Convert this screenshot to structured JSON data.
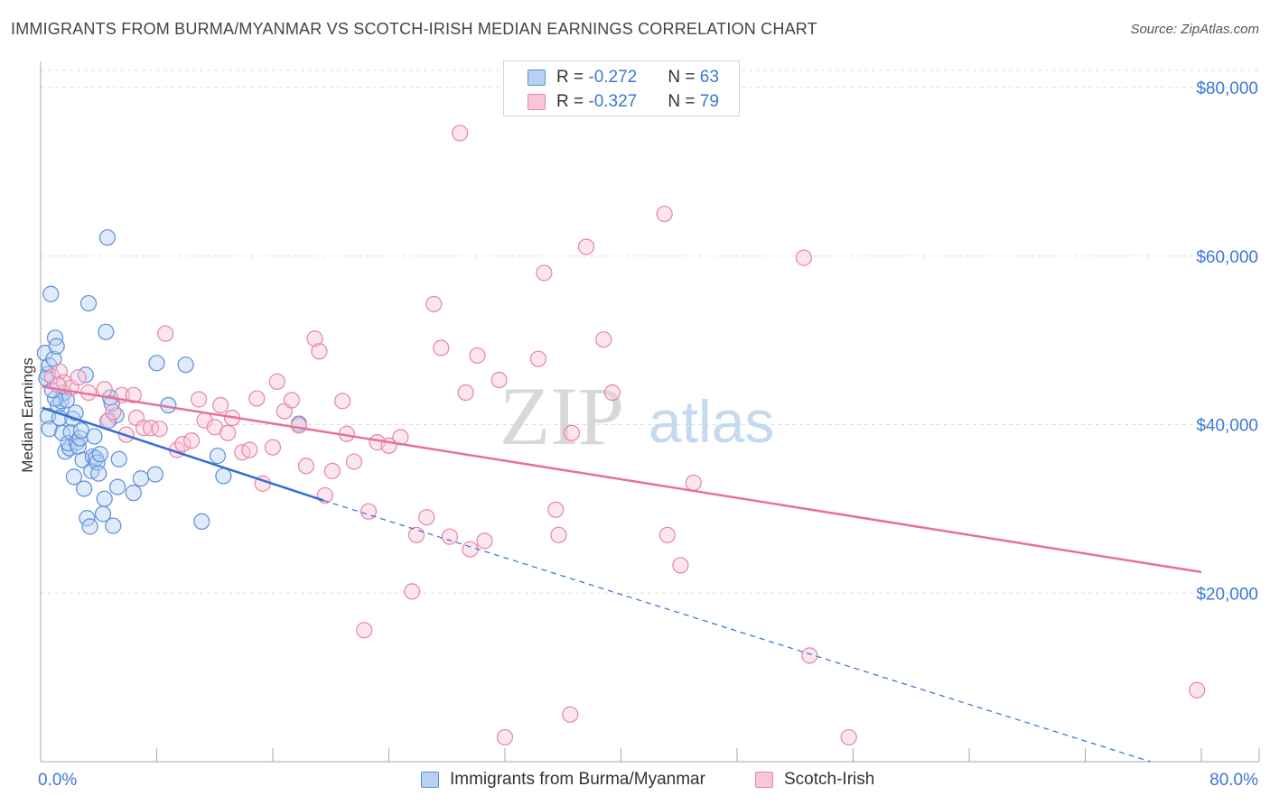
{
  "title": "IMMIGRANTS FROM BURMA/MYANMAR VS SCOTCH-IRISH MEDIAN EARNINGS CORRELATION CHART",
  "source": "Source: ZipAtlas.com",
  "legend": {
    "rows": [
      {
        "r_label": "R = ",
        "r_value": "-0.272",
        "n_label": "N = ",
        "n_value": "63"
      },
      {
        "r_label": "R = ",
        "r_value": "-0.327",
        "n_label": "N = ",
        "n_value": "79"
      }
    ]
  },
  "watermark": {
    "zip": "ZIP",
    "atlas": "atlas"
  },
  "colors": {
    "series1_fill": "#b8d1f3",
    "series1_stroke": "#5b8fd8",
    "series1_line": "#2f6fd6",
    "series2_fill": "#f8c6d6",
    "series2_stroke": "#e585a5",
    "series2_line": "#e8709a",
    "axis_text": "#3b78d8",
    "grid": "#dddddd"
  },
  "chart_data": {
    "type": "scatter",
    "title": "IMMIGRANTS FROM BURMA/MYANMAR VS SCOTCH-IRISH MEDIAN EARNINGS CORRELATION CHART",
    "xlabel": "",
    "ylabel": "Median Earnings",
    "xlim": [
      0,
      80
    ],
    "ylim": [
      0,
      82000
    ],
    "x_tick_labels": [
      "0.0%",
      "80.0%"
    ],
    "y_ticks": [
      20000,
      40000,
      60000,
      80000
    ],
    "y_tick_labels": [
      "$20,000",
      "$40,000",
      "$60,000",
      "$80,000"
    ],
    "grid": true,
    "legend_position": "top-center",
    "series": [
      {
        "name": "Immigrants from Burma/Myanmar",
        "r": -0.272,
        "n": 63,
        "trend": {
          "x": [
            0.1,
            19.5
          ],
          "y": [
            42000,
            31000
          ],
          "dashed_to": {
            "x": 76.5,
            "y": -1000
          }
        },
        "points": [
          [
            0.3,
            48500
          ],
          [
            0.5,
            46000
          ],
          [
            0.6,
            47000
          ],
          [
            0.4,
            45500
          ],
          [
            0.7,
            55500
          ],
          [
            0.9,
            47800
          ],
          [
            1.0,
            50300
          ],
          [
            1.1,
            49300
          ],
          [
            0.5,
            41000
          ],
          [
            0.6,
            39500
          ],
          [
            1.2,
            42300
          ],
          [
            1.4,
            42800
          ],
          [
            1.3,
            40800
          ],
          [
            1.5,
            39000
          ],
          [
            1.6,
            43800
          ],
          [
            1.8,
            42900
          ],
          [
            1.7,
            36800
          ],
          [
            2.0,
            37200
          ],
          [
            1.9,
            37800
          ],
          [
            2.1,
            39100
          ],
          [
            2.3,
            33800
          ],
          [
            2.5,
            37900
          ],
          [
            2.6,
            37400
          ],
          [
            2.7,
            38400
          ],
          [
            2.8,
            39300
          ],
          [
            2.9,
            35800
          ],
          [
            3.0,
            32400
          ],
          [
            3.1,
            45900
          ],
          [
            3.2,
            28900
          ],
          [
            3.4,
            27900
          ],
          [
            3.5,
            34500
          ],
          [
            3.6,
            36200
          ],
          [
            3.8,
            36000
          ],
          [
            3.9,
            35500
          ],
          [
            4.0,
            34200
          ],
          [
            4.1,
            36500
          ],
          [
            4.3,
            29400
          ],
          [
            4.4,
            31200
          ],
          [
            4.5,
            51000
          ],
          [
            4.6,
            62200
          ],
          [
            4.7,
            40500
          ],
          [
            5.0,
            28000
          ],
          [
            5.3,
            32600
          ],
          [
            5.4,
            35900
          ],
          [
            3.3,
            54400
          ],
          [
            5.2,
            41100
          ],
          [
            6.4,
            31900
          ],
          [
            6.9,
            33600
          ],
          [
            7.9,
            34100
          ],
          [
            8.0,
            47300
          ],
          [
            8.8,
            42300
          ],
          [
            10.0,
            47100
          ],
          [
            11.1,
            28500
          ],
          [
            12.2,
            36300
          ],
          [
            12.6,
            33900
          ],
          [
            17.8,
            40100
          ],
          [
            4.9,
            42500
          ],
          [
            2.2,
            40700
          ],
          [
            1.0,
            43100
          ],
          [
            0.8,
            44100
          ],
          [
            2.4,
            41400
          ],
          [
            4.8,
            43200
          ],
          [
            3.7,
            38600
          ]
        ]
      },
      {
        "name": "Scotch-Irish",
        "r": -0.327,
        "n": 79,
        "trend": {
          "x": [
            0.1,
            80.0
          ],
          "y": [
            44500,
            22500
          ]
        },
        "points": [
          [
            0.8,
            45700
          ],
          [
            1.3,
            46300
          ],
          [
            1.6,
            45000
          ],
          [
            2.1,
            44400
          ],
          [
            2.6,
            45600
          ],
          [
            3.3,
            43800
          ],
          [
            4.4,
            44200
          ],
          [
            4.6,
            40400
          ],
          [
            5.0,
            41500
          ],
          [
            5.6,
            43500
          ],
          [
            5.9,
            38800
          ],
          [
            6.4,
            43500
          ],
          [
            6.6,
            40800
          ],
          [
            7.1,
            39600
          ],
          [
            7.6,
            39600
          ],
          [
            8.2,
            39500
          ],
          [
            8.6,
            50800
          ],
          [
            9.4,
            37000
          ],
          [
            9.8,
            37700
          ],
          [
            10.4,
            38100
          ],
          [
            10.9,
            43000
          ],
          [
            11.3,
            40500
          ],
          [
            12.0,
            39700
          ],
          [
            12.4,
            42300
          ],
          [
            12.9,
            39000
          ],
          [
            13.2,
            40800
          ],
          [
            13.9,
            36700
          ],
          [
            14.4,
            37000
          ],
          [
            14.9,
            43100
          ],
          [
            15.3,
            33000
          ],
          [
            16.0,
            37300
          ],
          [
            16.3,
            45100
          ],
          [
            16.8,
            41600
          ],
          [
            17.3,
            42900
          ],
          [
            17.8,
            39900
          ],
          [
            18.3,
            35100
          ],
          [
            18.9,
            50200
          ],
          [
            19.2,
            48700
          ],
          [
            19.6,
            31600
          ],
          [
            20.1,
            34500
          ],
          [
            20.8,
            42800
          ],
          [
            21.1,
            38900
          ],
          [
            21.6,
            35600
          ],
          [
            22.3,
            15600
          ],
          [
            22.6,
            29700
          ],
          [
            23.2,
            37900
          ],
          [
            24.0,
            37500
          ],
          [
            24.8,
            38500
          ],
          [
            25.6,
            20200
          ],
          [
            25.9,
            26900
          ],
          [
            26.6,
            29000
          ],
          [
            27.1,
            54300
          ],
          [
            27.6,
            49100
          ],
          [
            28.2,
            26700
          ],
          [
            28.9,
            74600
          ],
          [
            29.3,
            43800
          ],
          [
            29.6,
            25200
          ],
          [
            30.1,
            48200
          ],
          [
            30.6,
            26200
          ],
          [
            31.6,
            45300
          ],
          [
            32.0,
            2900
          ],
          [
            34.3,
            47800
          ],
          [
            34.7,
            58000
          ],
          [
            35.5,
            29900
          ],
          [
            35.7,
            26900
          ],
          [
            36.5,
            5600
          ],
          [
            36.6,
            39000
          ],
          [
            37.6,
            61100
          ],
          [
            38.8,
            50100
          ],
          [
            39.4,
            43800
          ],
          [
            43.0,
            65000
          ],
          [
            43.2,
            26900
          ],
          [
            44.1,
            23300
          ],
          [
            45.0,
            33100
          ],
          [
            52.6,
            59800
          ],
          [
            53.0,
            12600
          ],
          [
            55.7,
            2900
          ],
          [
            79.7,
            8500
          ],
          [
            1.2,
            44700
          ]
        ]
      }
    ]
  }
}
